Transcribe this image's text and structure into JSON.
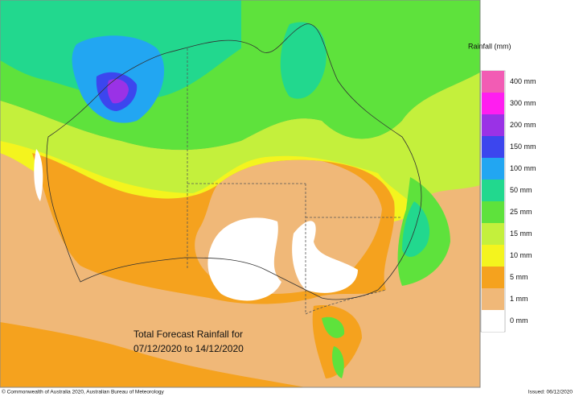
{
  "map": {
    "annotation": {
      "line1": "Total Forecast Rainfall for",
      "line2": "07/12/2020 to 14/12/2020"
    },
    "legend": {
      "title": "Rainfall (mm)",
      "items": [
        {
          "label": "400 mm",
          "color": "#f25cb4"
        },
        {
          "label": "300 mm",
          "color": "#ff1ef0"
        },
        {
          "label": "200 mm",
          "color": "#9a32e6"
        },
        {
          "label": "150 mm",
          "color": "#3c46ee"
        },
        {
          "label": "100 mm",
          "color": "#22a6f2"
        },
        {
          "label": "50 mm",
          "color": "#22d88e"
        },
        {
          "label": "25 mm",
          "color": "#5ee23c"
        },
        {
          "label": "15 mm",
          "color": "#c4f03c"
        },
        {
          "label": "10 mm",
          "color": "#f4f41e"
        },
        {
          "label": "5 mm",
          "color": "#f5a21e"
        },
        {
          "label": "1 mm",
          "color": "#f0b878"
        },
        {
          "label": "0 mm",
          "color": "#ffffff"
        }
      ]
    },
    "footer": {
      "copyright": "© Commonwealth of Australia 2020, Australian Bureau of Meteorology",
      "issued": "Issued: 06/12/2020"
    }
  }
}
